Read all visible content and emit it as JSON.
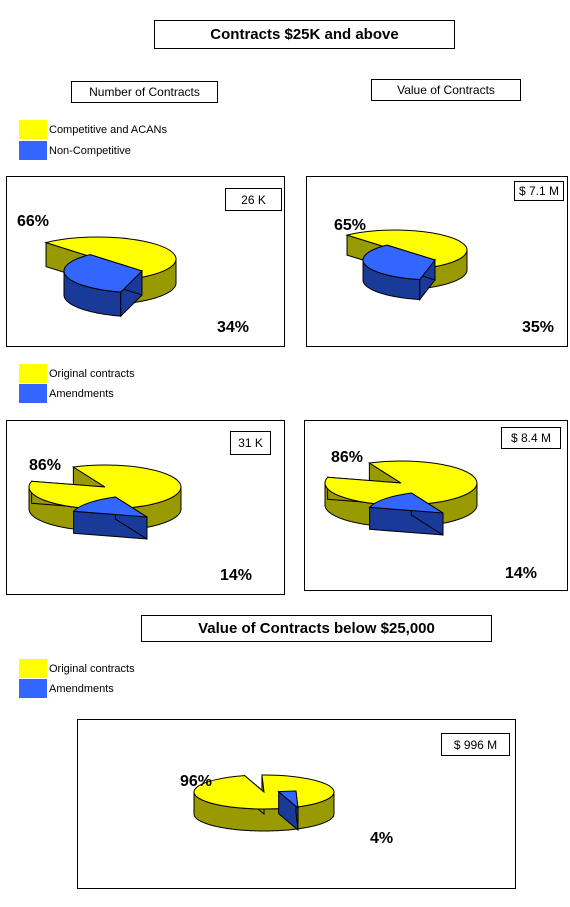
{
  "page": {
    "main_title": "Contracts $25K and above",
    "col1_title": "Number of Contracts",
    "col2_title": "Value of Contracts",
    "section2_title": "Value of Contracts below $25,000"
  },
  "legends": [
    {
      "items": [
        {
          "label": "Competitive and ACANs",
          "color": "#ffff00"
        },
        {
          "label": "Non-Competitive",
          "color": "#3366ff"
        }
      ]
    },
    {
      "items": [
        {
          "label": "Original contracts",
          "color": "#ffff00"
        },
        {
          "label": "Amendments",
          "color": "#3366ff"
        }
      ]
    },
    {
      "items": [
        {
          "label": "Original contracts",
          "color": "#ffff00"
        },
        {
          "label": "Amendments",
          "color": "#3366ff"
        }
      ]
    }
  ],
  "chart_data": [
    {
      "type": "pie",
      "total_label": "26 K",
      "categories": [
        "Competitive and ACANs",
        "Non-Competitive"
      ],
      "values": [
        66,
        34
      ],
      "labels": [
        "66%",
        "34%"
      ],
      "colors": [
        "#ffff00",
        "#3366ff"
      ]
    },
    {
      "type": "pie",
      "total_label": "$ 7.1 M",
      "categories": [
        "Competitive and ACANs",
        "Non-Competitive"
      ],
      "values": [
        65,
        35
      ],
      "labels": [
        "65%",
        "35%"
      ],
      "colors": [
        "#ffff00",
        "#3366ff"
      ]
    },
    {
      "type": "pie",
      "total_label": "31 K",
      "categories": [
        "Original contracts",
        "Amendments"
      ],
      "values": [
        86,
        14
      ],
      "labels": [
        "86%",
        "14%"
      ],
      "colors": [
        "#ffff00",
        "#3366ff"
      ]
    },
    {
      "type": "pie",
      "total_label": "$ 8.4 M",
      "categories": [
        "Original contracts",
        "Amendments"
      ],
      "values": [
        86,
        14
      ],
      "labels": [
        "86%",
        "14%"
      ],
      "colors": [
        "#ffff00",
        "#3366ff"
      ]
    },
    {
      "type": "pie",
      "total_label": "$ 996 M",
      "categories": [
        "Original contracts",
        "Amendments"
      ],
      "values": [
        96,
        4
      ],
      "labels": [
        "96%",
        "4%"
      ],
      "colors": [
        "#ffff00",
        "#3366ff"
      ]
    }
  ],
  "colors": {
    "yellow_side": "#999900",
    "blue_side": "#1a3a99",
    "outline": "#000000"
  }
}
